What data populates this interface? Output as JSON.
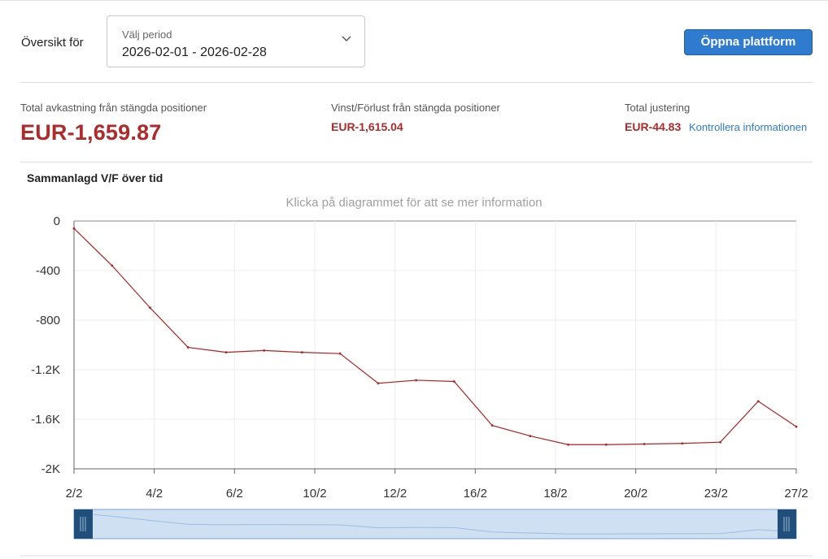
{
  "header": {
    "overview_label": "Översikt för",
    "period": {
      "label": "Välj period",
      "value": "2026-02-01 - 2026-02-28"
    },
    "open_platform_label": "Öppna plattform"
  },
  "stats": {
    "total_return": {
      "label": "Total avkastning från stängda positioner",
      "value": "EUR-1,659.87"
    },
    "pnl": {
      "label": "Vinst/Förlust från stängda positioner",
      "value": "EUR-1,615.04"
    },
    "adjustment": {
      "label": "Total justering",
      "value": "EUR-44.83",
      "link": "Kontrollera informationen"
    }
  },
  "chart_section": {
    "title": "Sammanlagd V/F över tid",
    "hint": "Klicka på diagrammet för att se mer information"
  },
  "colors": {
    "negative": "#b02a2a",
    "accent": "#2f7bd0",
    "line": "#b22222"
  },
  "chart_data": {
    "type": "line",
    "ylim": [
      -2000,
      0
    ],
    "yticks": [
      0,
      -400,
      -800,
      -1200,
      -1600,
      -2000
    ],
    "ytick_labels": [
      "0",
      "-400",
      "-800",
      "-1.2K",
      "-1.6K",
      "-2K"
    ],
    "xtick_labels": [
      "2/2",
      "4/2",
      "6/2",
      "10/2",
      "12/2",
      "16/2",
      "18/2",
      "20/2",
      "23/2",
      "27/2"
    ],
    "grid": true,
    "series": [
      {
        "values": [
          -60,
          -360,
          -700,
          -1020,
          -1060,
          -1045,
          -1060,
          -1070,
          -1310,
          -1285,
          -1295,
          -1650,
          -1735,
          -1805,
          -1805,
          -1800,
          -1795,
          -1785,
          -1455,
          -1660
        ]
      }
    ]
  }
}
